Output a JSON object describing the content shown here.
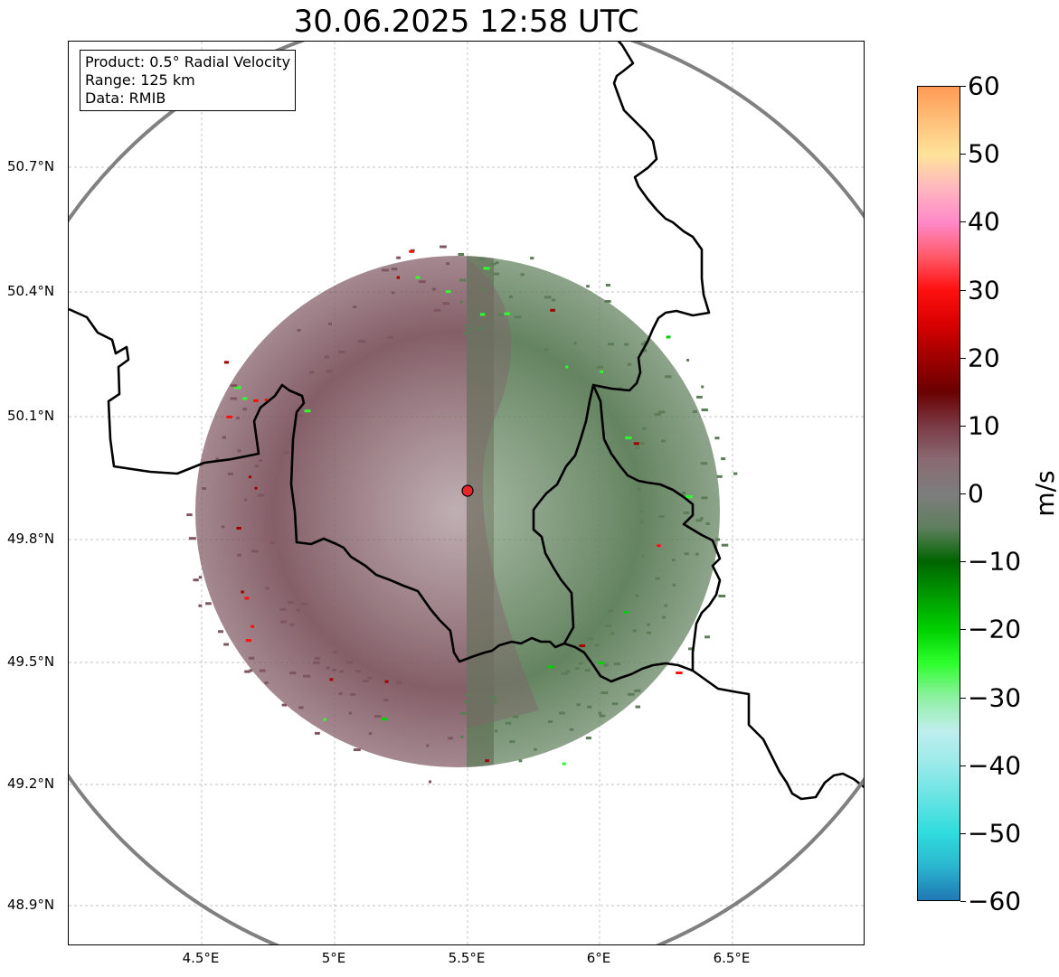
{
  "title": "30.06.2025 12:58 UTC",
  "info": {
    "product": "Product: 0.5° Radial Velocity",
    "range": "Range: 125 km",
    "data": "Data: RMIB"
  },
  "axes": {
    "lon_ticks": [
      "4.5°E",
      "5°E",
      "5.5°E",
      "6°E",
      "6.5°E"
    ],
    "lat_ticks": [
      "50.7°N",
      "50.4°N",
      "50.1°N",
      "49.8°N",
      "49.5°N",
      "49.2°N",
      "48.9°N"
    ],
    "lon_values": [
      4.5,
      5.0,
      5.5,
      6.0,
      6.5
    ],
    "lat_values": [
      50.7,
      50.4,
      50.1,
      49.8,
      49.5,
      49.2,
      48.9
    ]
  },
  "radar": {
    "site_lon": 5.505,
    "site_lat": 49.914,
    "site_color": "#e8262a",
    "range_ring_color": "#808080"
  },
  "colorbar": {
    "unit": "m/s",
    "min": -60,
    "max": 60,
    "tick_labels": [
      "60",
      "50",
      "40",
      "30",
      "20",
      "10",
      "0",
      "−10",
      "−20",
      "−30",
      "−40",
      "−50",
      "−60"
    ],
    "gradient_colors": [
      "#1f78b4",
      "#2bb6cf",
      "#2fdcdc",
      "#66e3e3",
      "#9aeaea",
      "#bfeeee",
      "#8ef0a0",
      "#2cff2c",
      "#00d000",
      "#009a00",
      "#006400",
      "#5f7f5f",
      "#7d7d7d",
      "#8a6a72",
      "#7a3a45",
      "#6a0000",
      "#a00000",
      "#d80000",
      "#ff1010",
      "#ff5a6a",
      "#ff88c8",
      "#ffb6bf",
      "#ffe39a",
      "#ffc07a",
      "#ff9a55"
    ]
  },
  "colors": {
    "inbound": "#5c7d58",
    "outbound": "#7e5660",
    "border": "#000000",
    "grid": "#b0b0b0"
  }
}
